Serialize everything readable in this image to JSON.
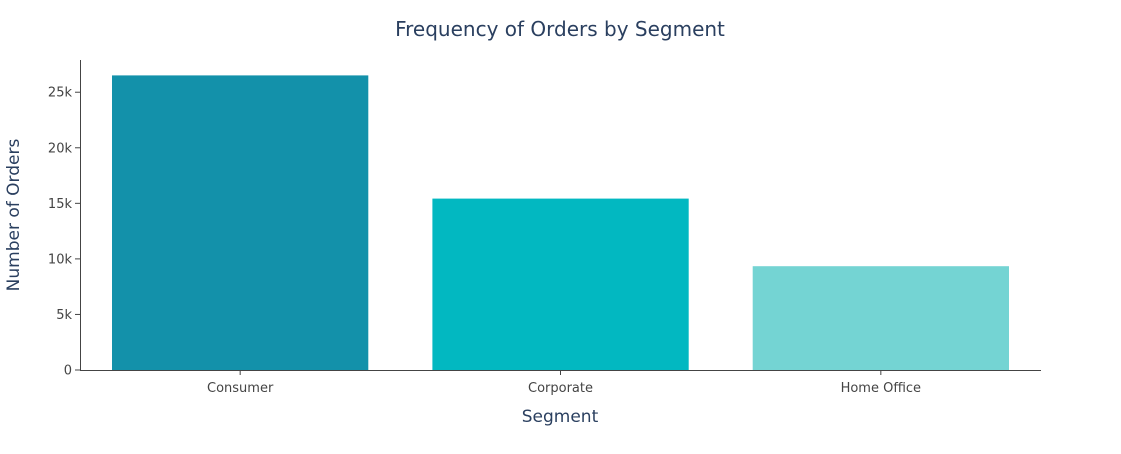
{
  "chart_data": {
    "type": "bar",
    "title": "Frequency of Orders by Segment",
    "xlabel": "Segment",
    "ylabel": "Number of Orders",
    "categories": [
      "Consumer",
      "Corporate",
      "Home Office"
    ],
    "values": [
      26518,
      15429,
      9343
    ],
    "colors": [
      "#1391aa",
      "#02b8c1",
      "#74d4d3"
    ],
    "ylim": [
      0,
      27900
    ],
    "yticks": [
      0,
      5000,
      10000,
      15000,
      20000,
      25000
    ],
    "ytick_labels": [
      "0",
      "5k",
      "10k",
      "15k",
      "20k",
      "25k"
    ],
    "grid": false,
    "legend": "none"
  }
}
